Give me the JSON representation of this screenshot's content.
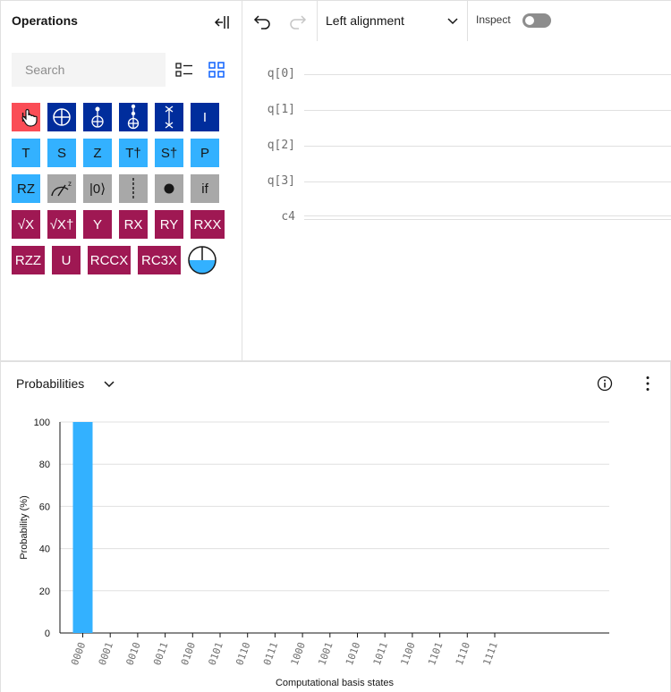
{
  "operations": {
    "title": "Operations",
    "search_placeholder": "Search",
    "gates_row1": [
      "H",
      "",
      "",
      "",
      "",
      "I"
    ],
    "gates_row2": [
      "T",
      "S",
      "Z",
      "T†",
      "S†",
      "P"
    ],
    "gates_row3": [
      "RZ",
      "",
      "|0⟩",
      "",
      "",
      "if"
    ],
    "gates_row4": [
      "√X",
      "√X†",
      "Y",
      "RX",
      "RY",
      "RXX"
    ],
    "gates_row5": [
      "RZZ",
      "U",
      "RCCX",
      "RC3X",
      ""
    ]
  },
  "toolbar": {
    "alignment_label": "Left alignment",
    "inspect_label": "Inspect",
    "inspect_on": false
  },
  "circuit": {
    "wires": [
      "q[0]",
      "q[1]",
      "q[2]",
      "q[3]",
      "c4"
    ]
  },
  "probabilities": {
    "title": "Probabilities"
  },
  "colors": {
    "bar": "#33b1ff",
    "gate_h": "#fa4d56",
    "gate_dark": "#002d9c",
    "gate_light": "#33b1ff",
    "gate_gray": "#a8a8a8",
    "gate_magenta": "#9f1853"
  },
  "chart_data": {
    "type": "bar",
    "categories": [
      "0000",
      "0001",
      "0010",
      "0011",
      "0100",
      "0101",
      "0110",
      "0111",
      "1000",
      "1001",
      "1010",
      "1011",
      "1100",
      "1101",
      "1110",
      "1111"
    ],
    "values": [
      100,
      0,
      0,
      0,
      0,
      0,
      0,
      0,
      0,
      0,
      0,
      0,
      0,
      0,
      0,
      0
    ],
    "xlabel": "Computational basis states",
    "ylabel": "Probability (%)",
    "ylim": [
      0,
      100
    ],
    "yticks": [
      0,
      20,
      40,
      60,
      80,
      100
    ],
    "grid": true
  }
}
